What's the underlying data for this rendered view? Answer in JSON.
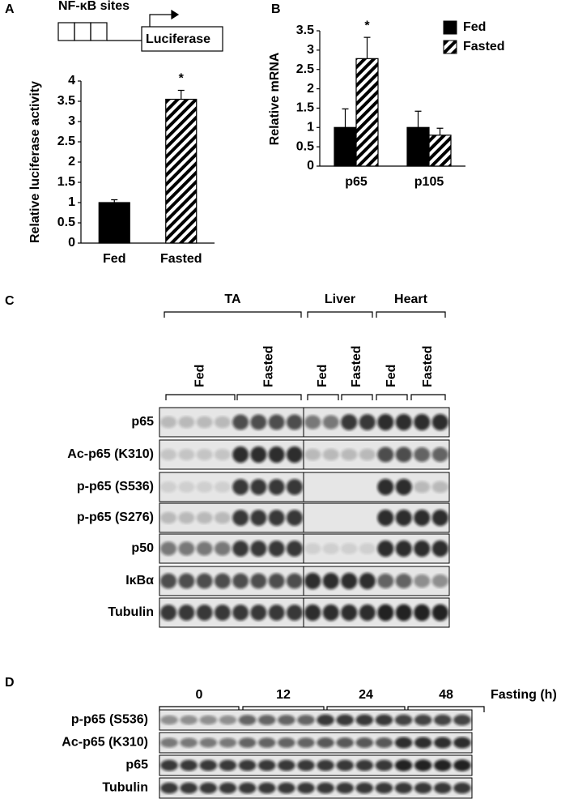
{
  "panel_a": {
    "label": "A",
    "construct_sites": "NF-κB sites",
    "construct_gene": "Luciferase",
    "chart": {
      "type": "bar",
      "y_label": "Relative luciferase activity",
      "categories": [
        "Fed",
        "Fasted"
      ],
      "values": [
        1,
        3.55
      ],
      "errors": [
        0.07,
        0.22
      ],
      "colors": [
        "#000000",
        "#000000"
      ],
      "hatch": [
        false,
        true
      ],
      "significance": [
        null,
        "*"
      ],
      "ylim": [
        0,
        4
      ],
      "yticks": [
        0,
        0.5,
        1,
        1.5,
        2,
        2.5,
        3,
        3.5,
        4
      ]
    }
  },
  "panel_b": {
    "label": "B",
    "chart": {
      "type": "bar",
      "y_label": "Relative mRNA",
      "categories": [
        "p65",
        "p105"
      ],
      "series": [
        {
          "name": "Fed",
          "color": "#000000",
          "hatch": false,
          "values": [
            1,
            1
          ],
          "errors": [
            0.48,
            0.42
          ],
          "significance": [
            null,
            null
          ]
        },
        {
          "name": "Fasted",
          "color": "#000000",
          "hatch": true,
          "values": [
            2.78,
            0.8
          ],
          "errors": [
            0.55,
            0.18
          ],
          "significance": [
            "*",
            null
          ]
        }
      ],
      "ylim": [
        0,
        3.5
      ],
      "yticks": [
        0,
        0.5,
        1,
        1.5,
        2,
        2.5,
        3,
        3.5
      ],
      "legend": "top-right"
    }
  },
  "panel_c": {
    "label": "C",
    "tissues": [
      "TA",
      "Liver",
      "Heart"
    ],
    "conditions": [
      "Fed",
      "Fasted",
      "Fed",
      "Fasted",
      "Fed",
      "Fasted"
    ],
    "rows": [
      "p65",
      "Ac-p65 (K310)",
      "p-p65 (S536)",
      "p-p65 (S276)",
      "p50",
      "IκBα",
      "Tubulin"
    ]
  },
  "panel_d": {
    "label": "D",
    "timepoints": [
      "0",
      "12",
      "24",
      "48"
    ],
    "time_axis_label": "Fasting (h)",
    "rows": [
      "p-p65 (S536)",
      "Ac-p65 (K310)",
      "p65",
      "Tubulin"
    ]
  }
}
